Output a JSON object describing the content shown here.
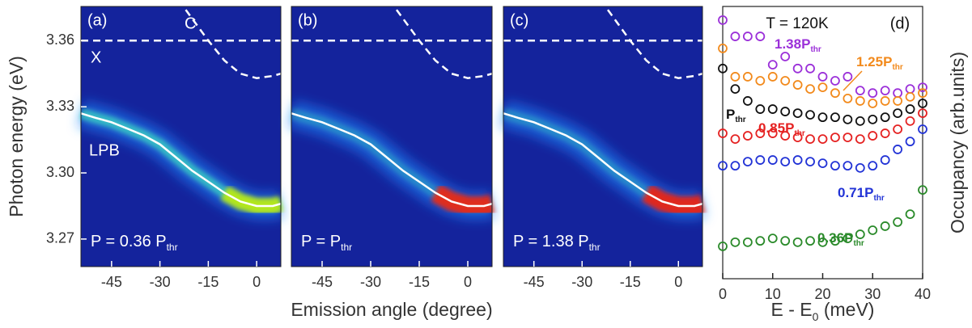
{
  "chart_data": [
    {
      "type": "line",
      "panel": "(a)",
      "background": "#14239c",
      "glow": "#c8f000",
      "xlabel": "Emission angle (degree)",
      "ylabel": "Photon energy (eV)",
      "xlim": [
        -54.5,
        7.5
      ],
      "ylim": [
        3.2575,
        3.3755
      ],
      "xticks": [
        -45,
        -30,
        -15,
        0
      ],
      "yticks": [
        3.27,
        {
          "value": 3.3,
          "label": "3.30"
        },
        3.33,
        3.36
      ],
      "annotation": {
        "text": "P = 0.36 P",
        "sub": "thr"
      },
      "series": [
        {
          "name": "LPB",
          "color": "#ffffff",
          "x": [
            -54.5,
            -50,
            -45,
            -40,
            -35,
            -30,
            -25,
            -20,
            -15,
            -10,
            -5,
            0,
            5,
            7.5
          ],
          "values": [
            3.327,
            3.325,
            3.323,
            3.32,
            3.317,
            3.313,
            3.307,
            3.301,
            3.296,
            3.291,
            3.287,
            3.285,
            3.285,
            3.286
          ]
        },
        {
          "name": "C",
          "color": "#ffffff",
          "dashed": true,
          "x": [
            -22,
            -20,
            -15,
            -10,
            -5,
            0,
            5,
            7.5
          ],
          "values": [
            3.374,
            3.37,
            3.36,
            3.351,
            3.345,
            3.343,
            3.344,
            3.345
          ]
        },
        {
          "name": "X",
          "color": "#ffffff",
          "dashed": true,
          "x": [
            -54.5,
            7.5
          ],
          "values": [
            3.36,
            3.36
          ]
        }
      ]
    },
    {
      "type": "line",
      "panel": "(b)",
      "background": "#14239c",
      "glow": "#ff2000",
      "xlim": [
        -54.5,
        7.5
      ],
      "ylim": [
        3.2575,
        3.3755
      ],
      "xticks": [
        -45,
        -30,
        -15,
        0
      ],
      "annotation": {
        "text": "P = P",
        "sub": "thr"
      },
      "series": [
        {
          "color": "#ffffff",
          "x": [
            -54.5,
            -50,
            -45,
            -40,
            -35,
            -30,
            -25,
            -20,
            -15,
            -10,
            -5,
            0,
            5,
            7.5
          ],
          "values": [
            3.327,
            3.325,
            3.323,
            3.32,
            3.317,
            3.313,
            3.307,
            3.301,
            3.296,
            3.291,
            3.287,
            3.285,
            3.285,
            3.286
          ]
        },
        {
          "color": "#ffffff",
          "dashed": true,
          "x": [
            -22,
            -20,
            -15,
            -10,
            -5,
            0,
            5,
            7.5
          ],
          "values": [
            3.374,
            3.37,
            3.36,
            3.351,
            3.345,
            3.343,
            3.344,
            3.345
          ]
        },
        {
          "color": "#ffffff",
          "dashed": true,
          "x": [
            -54.5,
            7.5
          ],
          "values": [
            3.36,
            3.36
          ]
        }
      ]
    },
    {
      "type": "line",
      "panel": "(c)",
      "background": "#14239c",
      "glow": "#ff1800",
      "xlim": [
        -54.5,
        7.5
      ],
      "ylim": [
        3.2575,
        3.3755
      ],
      "xticks": [
        -45,
        -30,
        -15,
        0
      ],
      "annotation": {
        "text": "P = 1.38 P",
        "sub": "thr"
      },
      "series": [
        {
          "color": "#ffffff",
          "x": [
            -54.5,
            -50,
            -45,
            -40,
            -35,
            -30,
            -25,
            -20,
            -15,
            -10,
            -5,
            0,
            5,
            7.5
          ],
          "values": [
            3.327,
            3.325,
            3.323,
            3.32,
            3.317,
            3.313,
            3.307,
            3.301,
            3.296,
            3.291,
            3.287,
            3.285,
            3.285,
            3.286
          ]
        },
        {
          "color": "#ffffff",
          "dashed": true,
          "x": [
            -22,
            -20,
            -15,
            -10,
            -5,
            0,
            5,
            7.5
          ],
          "values": [
            3.374,
            3.37,
            3.36,
            3.351,
            3.345,
            3.343,
            3.344,
            3.345
          ]
        },
        {
          "color": "#ffffff",
          "dashed": true,
          "x": [
            -54.5,
            7.5
          ],
          "values": [
            3.36,
            3.36
          ]
        }
      ]
    },
    {
      "type": "scatter",
      "panel": "(d)",
      "title": "T = 120K",
      "xlabel": {
        "text": "E - E",
        "sub": "0",
        "tail": " (meV)"
      },
      "ylabel": "Occupancy (arb.units)",
      "xlim": [
        0,
        40
      ],
      "ylim": [
        0,
        10
      ],
      "xticks": [
        0,
        10,
        20,
        30,
        40
      ],
      "x": [
        0,
        2.5,
        5,
        7.5,
        10,
        12.5,
        15,
        17.5,
        20,
        22.5,
        25,
        27.5,
        30,
        32.5,
        35,
        37.5,
        40
      ],
      "series": [
        {
          "label": {
            "text": "1.38P",
            "sub": "thr"
          },
          "color": "#9b30d9",
          "values": [
            9.5,
            8.9,
            8.9,
            8.9,
            7.86,
            8.16,
            7.72,
            7.72,
            7.42,
            7.27,
            7.42,
            6.91,
            6.82,
            6.91,
            6.82,
            6.97,
            7.03
          ]
        },
        {
          "label": {
            "text": "1.25P",
            "sub": "thr"
          },
          "color": "#f28a1c",
          "values": [
            8.46,
            7.42,
            7.42,
            7.27,
            7.42,
            7.27,
            7.12,
            6.97,
            7.03,
            6.82,
            6.62,
            6.53,
            6.44,
            6.53,
            6.53,
            6.68,
            6.82
          ]
        },
        {
          "label": {
            "text": "P",
            "sub": "thr"
          },
          "color": "#111111",
          "values": [
            7.72,
            6.97,
            6.53,
            6.23,
            6.23,
            6.14,
            6.08,
            6.02,
            5.93,
            5.93,
            5.85,
            5.79,
            5.85,
            5.93,
            6.08,
            6.23,
            6.44
          ]
        },
        {
          "label": {
            "text": "0.85P",
            "sub": "thr"
          },
          "color": "#e52222",
          "values": [
            5.34,
            5.13,
            5.25,
            5.34,
            5.34,
            5.25,
            5.19,
            5.13,
            5.13,
            5.19,
            5.19,
            5.13,
            5.25,
            5.34,
            5.49,
            5.79,
            6.08
          ]
        },
        {
          "label": {
            "text": "0.71P",
            "sub": "thr"
          },
          "color": "#2233d6",
          "values": [
            4.15,
            4.15,
            4.3,
            4.36,
            4.36,
            4.3,
            4.36,
            4.3,
            4.24,
            4.15,
            4.15,
            4.07,
            4.15,
            4.36,
            4.75,
            5.04,
            5.49
          ]
        },
        {
          "label": {
            "text": "0.36P",
            "sub": "thr"
          },
          "color": "#2a8a2a",
          "values": [
            1.19,
            1.34,
            1.34,
            1.39,
            1.48,
            1.39,
            1.34,
            1.39,
            1.34,
            1.39,
            1.48,
            1.63,
            1.78,
            1.93,
            2.08,
            2.37,
            3.26
          ]
        }
      ]
    }
  ]
}
